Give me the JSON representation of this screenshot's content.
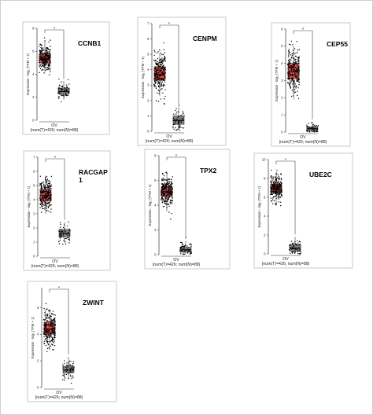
{
  "chart_data": [
    {
      "type": "boxplot",
      "gene": "CCNB1",
      "ylabel": "Expression - log₂ (TPM + 1)",
      "xlabel": "OV",
      "sample_label": "(num(T)=426; num(N)=88)",
      "significance": "*",
      "yticks": [
        0,
        2,
        4,
        6,
        8
      ],
      "ylim": [
        0,
        8
      ],
      "groups": [
        {
          "name": "T",
          "color": "#e8504f",
          "median": 5.4,
          "q1": 5.0,
          "q3": 5.8,
          "whisker_low": 4.2,
          "whisker_high": 6.9,
          "points_low": 2.0,
          "points_high": 7.4
        },
        {
          "name": "N",
          "color": "#7f7f7f",
          "median": 2.5,
          "q1": 2.3,
          "q3": 2.8,
          "whisker_low": 1.8,
          "whisker_high": 3.4,
          "points_low": 1.6,
          "points_high": 3.6
        }
      ]
    },
    {
      "type": "boxplot",
      "gene": "CENPM",
      "ylabel": "Expression - log₂ (TPM + 1)",
      "xlabel": "OV",
      "sample_label": "(num(T)=426; num(N)=88)",
      "significance": "*",
      "yticks": [
        0,
        1,
        2,
        3,
        4,
        5,
        6,
        7
      ],
      "ylim": [
        0,
        7
      ],
      "groups": [
        {
          "name": "T",
          "color": "#e8504f",
          "median": 3.7,
          "q1": 3.3,
          "q3": 4.2,
          "whisker_low": 2.3,
          "whisker_high": 5.1,
          "points_low": 1.2,
          "points_high": 6.2
        },
        {
          "name": "N",
          "color": "#7f7f7f",
          "median": 0.7,
          "q1": 0.45,
          "q3": 1.0,
          "whisker_low": 0.1,
          "whisker_high": 1.6,
          "points_low": 0.05,
          "points_high": 2.1
        }
      ]
    },
    {
      "type": "boxplot",
      "gene": "CEP55",
      "ylabel": "Expression - log₂ (TPM + 1)",
      "xlabel": "OV",
      "sample_label": "(num(T)=426; num(N)=88)",
      "significance": "*",
      "yticks": [
        0,
        1,
        2,
        3,
        4,
        5,
        6
      ],
      "ylim": [
        0,
        6
      ],
      "groups": [
        {
          "name": "T",
          "color": "#e8504f",
          "median": 3.5,
          "q1": 3.1,
          "q3": 4.0,
          "whisker_low": 1.9,
          "whisker_high": 5.0,
          "points_low": 0.9,
          "points_high": 6.0
        },
        {
          "name": "N",
          "color": "#7f7f7f",
          "median": 0.2,
          "q1": 0.1,
          "q3": 0.3,
          "whisker_low": 0.0,
          "whisker_high": 0.6,
          "points_low": 0.0,
          "points_high": 1.4
        }
      ]
    },
    {
      "type": "boxplot",
      "gene": "RACGAP 1",
      "gene_lines": [
        "RACGAP",
        "1"
      ],
      "ylabel": "Expression - log₂ (TPM + 1)",
      "xlabel": "OV",
      "sample_label": "(num(T)=426; num(N)=88)",
      "significance": "*",
      "yticks": [
        0,
        1,
        2,
        3,
        4,
        5,
        6,
        7
      ],
      "ylim": [
        0,
        7
      ],
      "groups": [
        {
          "name": "T",
          "color": "#e8504f",
          "median": 4.3,
          "q1": 3.9,
          "q3": 4.7,
          "whisker_low": 3.0,
          "whisker_high": 5.7,
          "points_low": 2.2,
          "points_high": 6.4
        },
        {
          "name": "N",
          "color": "#7f7f7f",
          "median": 1.6,
          "q1": 1.4,
          "q3": 1.9,
          "whisker_low": 1.0,
          "whisker_high": 2.4,
          "points_low": 0.8,
          "points_high": 3.1
        }
      ]
    },
    {
      "type": "boxplot",
      "gene": "TPX2",
      "ylabel": "Expression - log₂ (TPM + 1)",
      "xlabel": "OV",
      "sample_label": "(num(T)=426; num(N)=88)",
      "significance": "*",
      "yticks": [
        0,
        2,
        4,
        6,
        8
      ],
      "ylim": [
        0,
        8
      ],
      "groups": [
        {
          "name": "T",
          "color": "#e8504f",
          "median": 5.1,
          "q1": 4.7,
          "q3": 5.5,
          "whisker_low": 3.5,
          "whisker_high": 6.6,
          "points_low": 1.0,
          "points_high": 7.4
        },
        {
          "name": "N",
          "color": "#7f7f7f",
          "median": 0.4,
          "q1": 0.2,
          "q3": 0.6,
          "whisker_low": 0.0,
          "whisker_high": 1.1,
          "points_low": 0.0,
          "points_high": 1.4
        }
      ]
    },
    {
      "type": "boxplot",
      "gene": "UBE2C",
      "ylabel": "Expression - log₂ (TPM + 1)",
      "xlabel": "OV",
      "sample_label": "(num(T)=426; num(N)=88)",
      "significance": "*",
      "yticks": [
        0,
        2,
        4,
        6,
        8,
        10
      ],
      "ylim": [
        0,
        10
      ],
      "groups": [
        {
          "name": "T",
          "color": "#e8504f",
          "median": 6.9,
          "q1": 6.5,
          "q3": 7.4,
          "whisker_low": 5.3,
          "whisker_high": 8.6,
          "points_low": 2.5,
          "points_high": 9.5
        },
        {
          "name": "N",
          "color": "#7f7f7f",
          "median": 0.6,
          "q1": 0.3,
          "q3": 1.0,
          "whisker_low": 0.0,
          "whisker_high": 1.8,
          "points_low": 0.0,
          "points_high": 3.6
        }
      ]
    },
    {
      "type": "boxplot",
      "gene": "ZWINT",
      "ylabel": "Expression - log₂ (TPM + 1)",
      "xlabel": "OV",
      "sample_label": "(num(T)=426; num(N)=88)",
      "significance": "*",
      "yticks": [
        0,
        2,
        4,
        6
      ],
      "ylim": [
        0,
        7.5
      ],
      "groups": [
        {
          "name": "T",
          "color": "#e8504f",
          "median": 4.4,
          "q1": 4.0,
          "q3": 4.9,
          "whisker_low": 2.8,
          "whisker_high": 5.9,
          "points_low": 1.2,
          "points_high": 6.8
        },
        {
          "name": "N",
          "color": "#7f7f7f",
          "median": 1.3,
          "q1": 1.1,
          "q3": 1.6,
          "whisker_low": 0.6,
          "whisker_high": 2.3,
          "points_low": 0.2,
          "points_high": 3.4
        }
      ]
    }
  ]
}
